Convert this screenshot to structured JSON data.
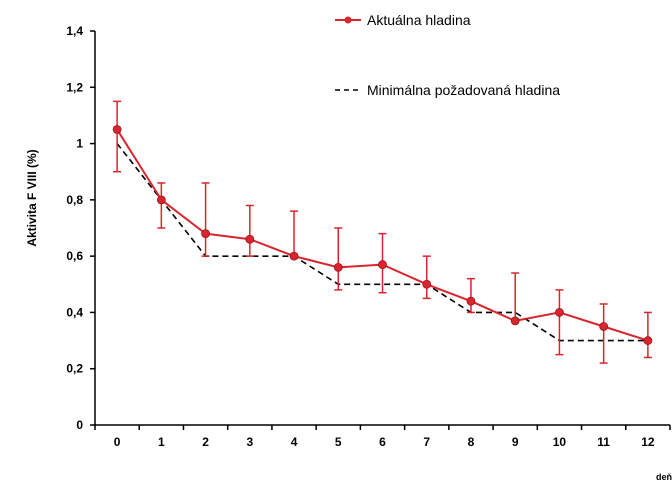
{
  "chart_data": {
    "type": "line",
    "title": "",
    "xlabel": "deň",
    "ylabel": "Aktivita F VIII  (%)",
    "x": [
      0,
      1,
      2,
      3,
      4,
      5,
      6,
      7,
      8,
      9,
      10,
      11,
      12
    ],
    "x_tick_labels": [
      "0",
      "1",
      "2",
      "3",
      "4",
      "5",
      "6",
      "7",
      "8",
      "9",
      "10",
      "11",
      "12"
    ],
    "xlim": [
      -0.5,
      12.5
    ],
    "ylim": [
      0,
      1.4
    ],
    "y_ticks": [
      0,
      0.2,
      0.4,
      0.6,
      0.8,
      1.0,
      1.2,
      1.4
    ],
    "y_tick_labels": [
      "0",
      "0,2",
      "0,4",
      "0,6",
      "0,8",
      "1",
      "1,2",
      "1,4"
    ],
    "grid": false,
    "legend_position": "top-right",
    "series": [
      {
        "name": "Aktuálna hladina",
        "style": "solid-line-with-markers-and-error-bars",
        "color": "#d7262f",
        "values": [
          1.05,
          0.8,
          0.68,
          0.66,
          0.6,
          0.56,
          0.57,
          0.5,
          0.44,
          0.37,
          0.4,
          0.35,
          0.3
        ],
        "error_high": [
          1.15,
          0.86,
          0.86,
          0.78,
          0.76,
          0.7,
          0.68,
          0.6,
          0.52,
          0.54,
          0.48,
          0.43,
          0.4
        ],
        "error_low": [
          0.9,
          0.7,
          0.6,
          0.6,
          0.6,
          0.48,
          0.47,
          0.45,
          0.4,
          0.37,
          0.25,
          0.22,
          0.24
        ]
      },
      {
        "name": "Minimálna požadovaná hladina",
        "style": "dashed-step-line",
        "color": "#000000",
        "values": [
          1.0,
          0.8,
          0.6,
          0.6,
          0.6,
          0.5,
          0.5,
          0.5,
          0.4,
          0.4,
          0.3,
          0.3,
          0.3
        ]
      }
    ]
  }
}
